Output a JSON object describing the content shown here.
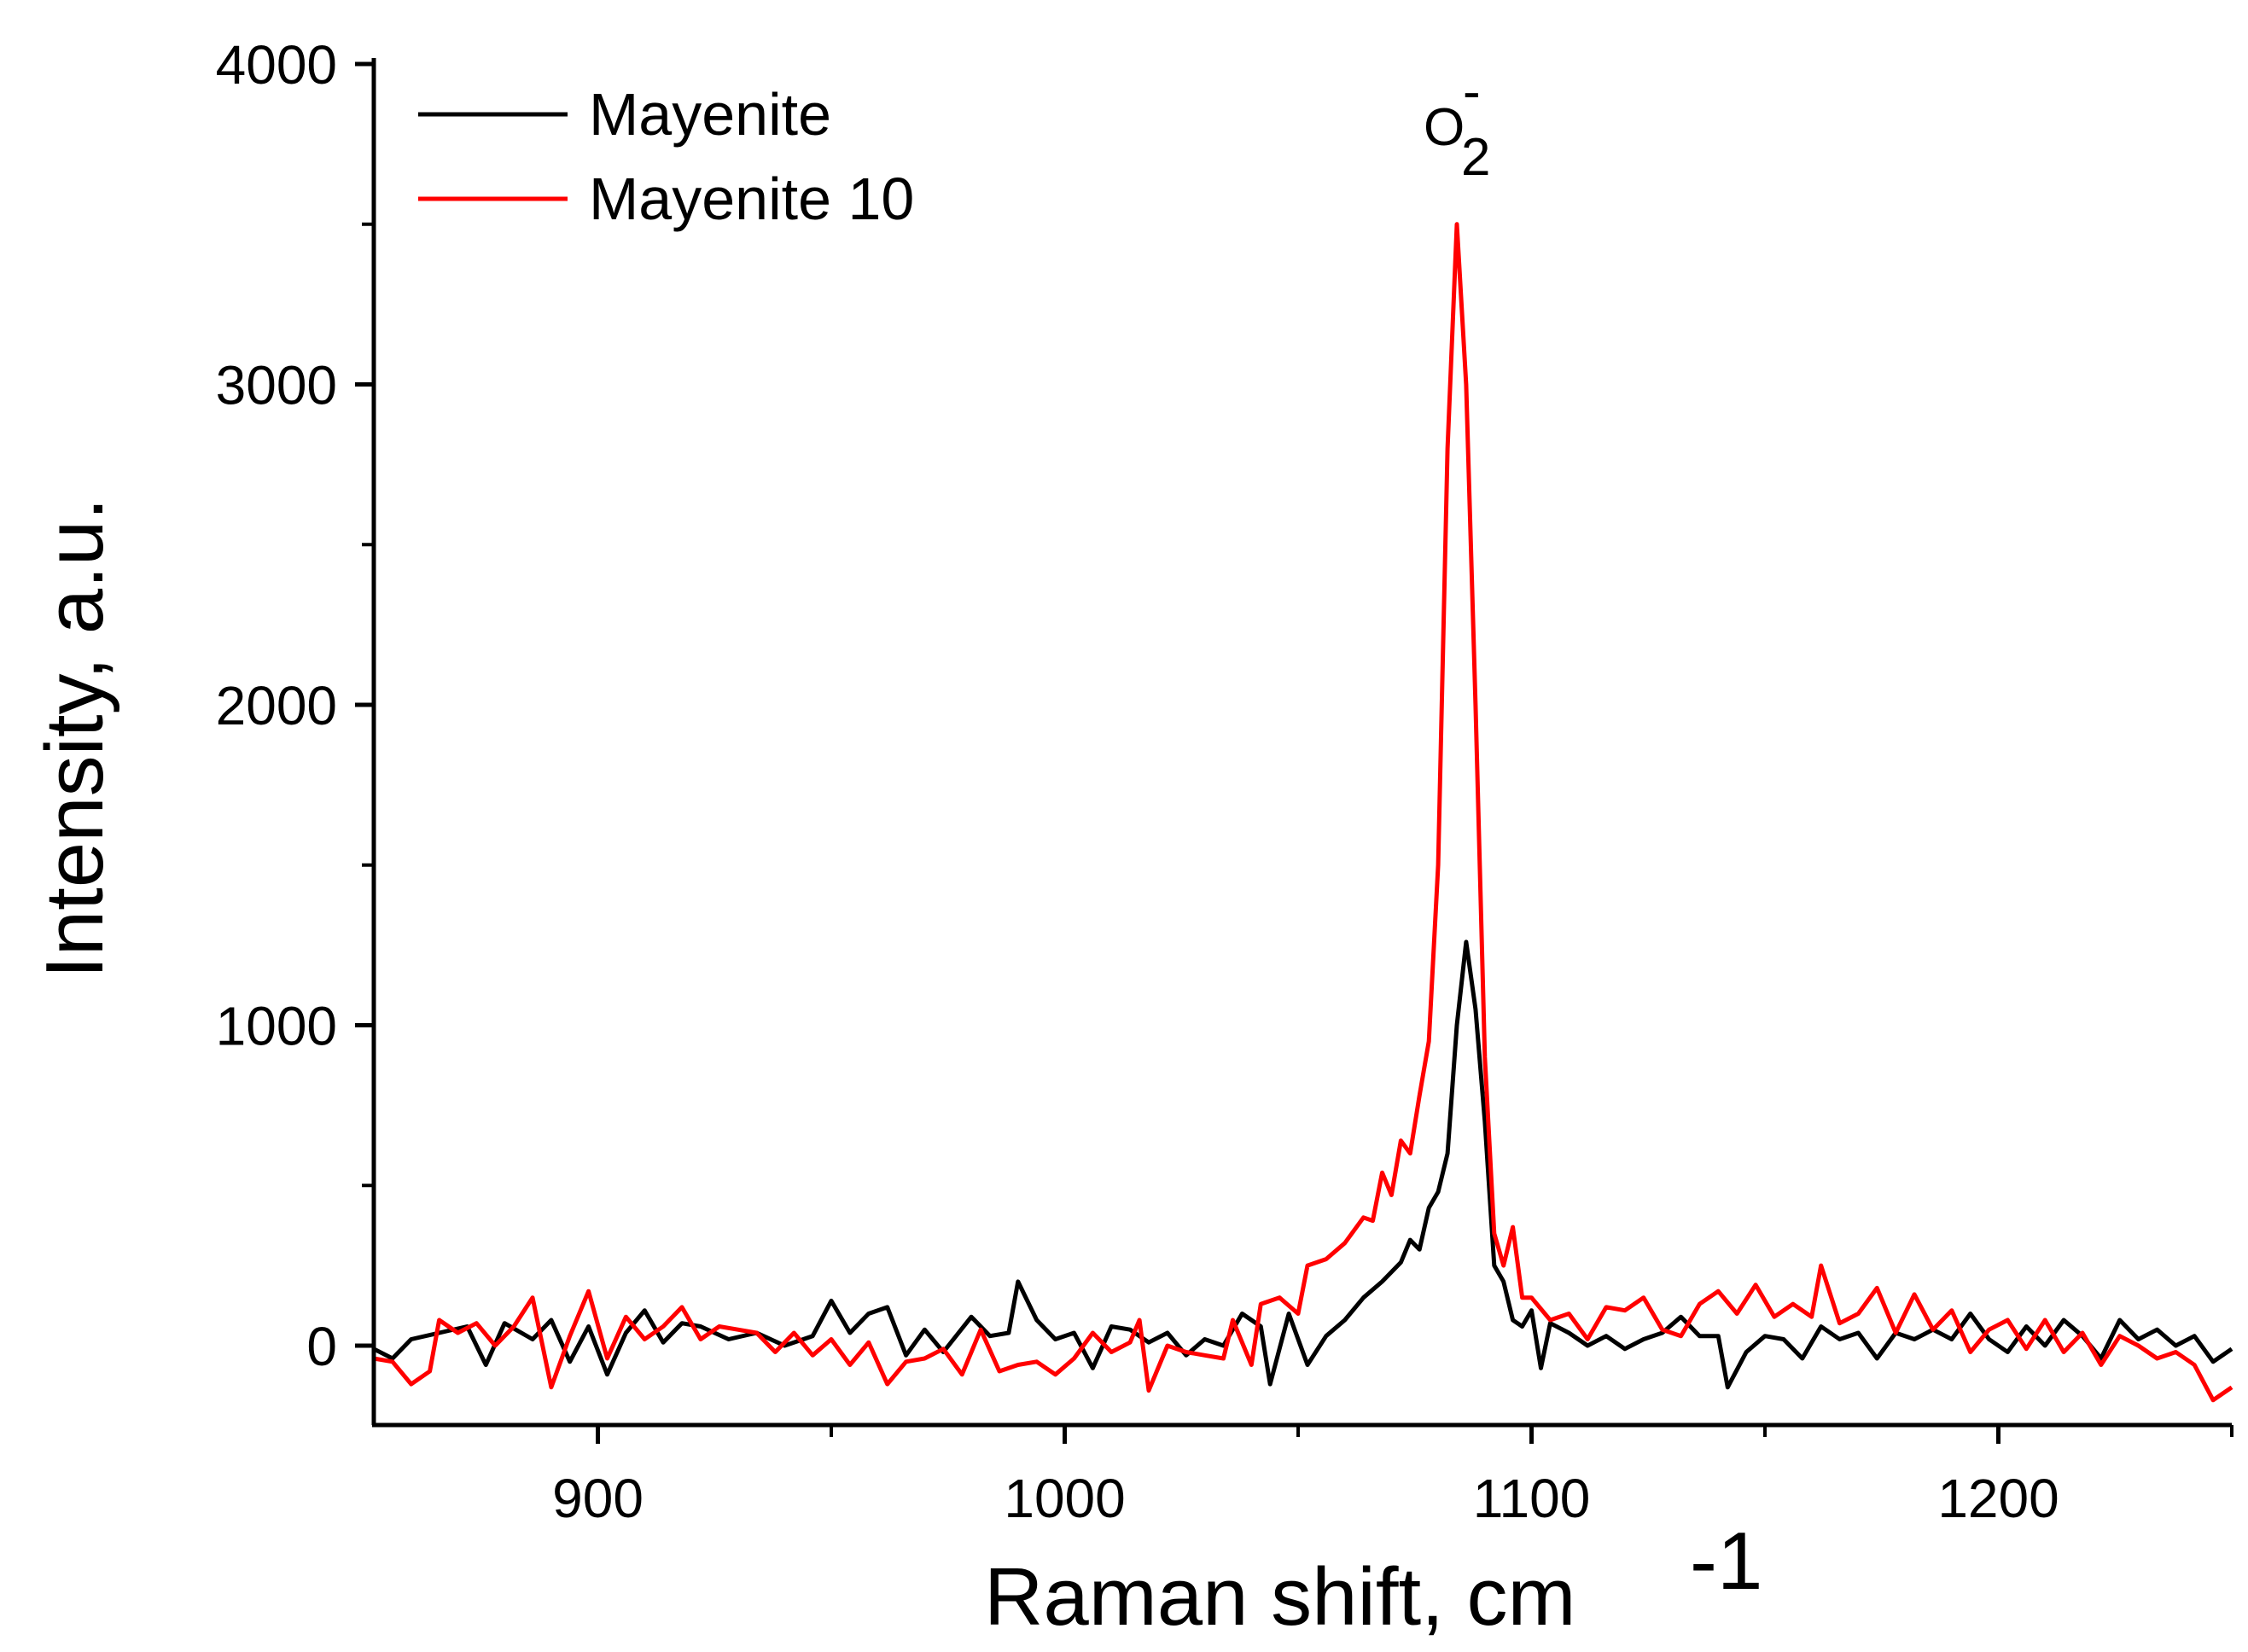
{
  "chart_data": {
    "type": "line",
    "title": "",
    "xlabel": "Raman shift, cm",
    "xlabel_superscript": "-1",
    "ylabel": "Intensity, a.u.",
    "xlim": [
      852,
      1250
    ],
    "ylim": [
      -250,
      4000
    ],
    "x_ticks": [
      900,
      1000,
      1100,
      1200
    ],
    "x_minor_ticks": [
      850,
      950,
      1050,
      1150,
      1250
    ],
    "y_ticks": [
      0,
      1000,
      2000,
      3000,
      4000
    ],
    "y_minor_ticks": [
      500,
      1500,
      2500,
      3500
    ],
    "annotation": {
      "text": "O",
      "superscript": "-",
      "subscript": "2",
      "x": 1085,
      "y": 3760
    },
    "legend": {
      "position": "top-left",
      "entries": [
        {
          "label": "Mayenite",
          "color": "#000000"
        },
        {
          "label": "Mayenite 10",
          "color": "#ff0000"
        }
      ]
    },
    "series": [
      {
        "name": "Mayenite",
        "color": "#000000",
        "points": [
          [
            852,
            -10
          ],
          [
            856,
            -40
          ],
          [
            860,
            20
          ],
          [
            866,
            40
          ],
          [
            872,
            60
          ],
          [
            876,
            -60
          ],
          [
            880,
            70
          ],
          [
            886,
            20
          ],
          [
            890,
            80
          ],
          [
            894,
            -50
          ],
          [
            898,
            60
          ],
          [
            902,
            -90
          ],
          [
            906,
            40
          ],
          [
            910,
            110
          ],
          [
            914,
            10
          ],
          [
            918,
            70
          ],
          [
            922,
            60
          ],
          [
            928,
            20
          ],
          [
            934,
            40
          ],
          [
            940,
            0
          ],
          [
            946,
            30
          ],
          [
            950,
            140
          ],
          [
            954,
            40
          ],
          [
            958,
            100
          ],
          [
            962,
            120
          ],
          [
            966,
            -30
          ],
          [
            970,
            50
          ],
          [
            974,
            -20
          ],
          [
            980,
            90
          ],
          [
            984,
            30
          ],
          [
            988,
            40
          ],
          [
            990,
            200
          ],
          [
            994,
            80
          ],
          [
            998,
            20
          ],
          [
            1002,
            40
          ],
          [
            1006,
            -70
          ],
          [
            1010,
            60
          ],
          [
            1014,
            50
          ],
          [
            1018,
            10
          ],
          [
            1022,
            40
          ],
          [
            1026,
            -30
          ],
          [
            1030,
            20
          ],
          [
            1034,
            0
          ],
          [
            1038,
            100
          ],
          [
            1042,
            60
          ],
          [
            1044,
            -120
          ],
          [
            1048,
            100
          ],
          [
            1052,
            -60
          ],
          [
            1056,
            30
          ],
          [
            1060,
            80
          ],
          [
            1064,
            150
          ],
          [
            1068,
            200
          ],
          [
            1072,
            260
          ],
          [
            1074,
            330
          ],
          [
            1076,
            300
          ],
          [
            1078,
            430
          ],
          [
            1080,
            480
          ],
          [
            1082,
            600
          ],
          [
            1084,
            1000
          ],
          [
            1086,
            1260
          ],
          [
            1088,
            1050
          ],
          [
            1090,
            700
          ],
          [
            1092,
            250
          ],
          [
            1094,
            200
          ],
          [
            1096,
            80
          ],
          [
            1098,
            60
          ],
          [
            1100,
            110
          ],
          [
            1102,
            -70
          ],
          [
            1104,
            70
          ],
          [
            1108,
            40
          ],
          [
            1112,
            0
          ],
          [
            1116,
            30
          ],
          [
            1120,
            -10
          ],
          [
            1124,
            20
          ],
          [
            1128,
            40
          ],
          [
            1132,
            90
          ],
          [
            1136,
            30
          ],
          [
            1140,
            30
          ],
          [
            1142,
            -130
          ],
          [
            1146,
            -20
          ],
          [
            1150,
            30
          ],
          [
            1154,
            20
          ],
          [
            1158,
            -40
          ],
          [
            1162,
            60
          ],
          [
            1166,
            20
          ],
          [
            1170,
            40
          ],
          [
            1174,
            -40
          ],
          [
            1178,
            40
          ],
          [
            1182,
            20
          ],
          [
            1186,
            50
          ],
          [
            1190,
            20
          ],
          [
            1194,
            100
          ],
          [
            1198,
            20
          ],
          [
            1202,
            -20
          ],
          [
            1206,
            60
          ],
          [
            1210,
            0
          ],
          [
            1214,
            80
          ],
          [
            1218,
            30
          ],
          [
            1222,
            -40
          ],
          [
            1226,
            80
          ],
          [
            1230,
            20
          ],
          [
            1234,
            50
          ],
          [
            1238,
            0
          ],
          [
            1242,
            30
          ],
          [
            1246,
            -50
          ],
          [
            1250,
            -10
          ]
        ]
      },
      {
        "name": "Mayenite 10",
        "color": "#ff0000",
        "points": [
          [
            852,
            -40
          ],
          [
            856,
            -50
          ],
          [
            860,
            -120
          ],
          [
            864,
            -80
          ],
          [
            866,
            80
          ],
          [
            870,
            40
          ],
          [
            874,
            70
          ],
          [
            878,
            0
          ],
          [
            882,
            60
          ],
          [
            886,
            150
          ],
          [
            890,
            -130
          ],
          [
            894,
            30
          ],
          [
            898,
            170
          ],
          [
            902,
            -40
          ],
          [
            906,
            90
          ],
          [
            910,
            20
          ],
          [
            914,
            60
          ],
          [
            918,
            120
          ],
          [
            922,
            20
          ],
          [
            926,
            60
          ],
          [
            930,
            50
          ],
          [
            934,
            40
          ],
          [
            938,
            -20
          ],
          [
            942,
            40
          ],
          [
            946,
            -30
          ],
          [
            950,
            20
          ],
          [
            954,
            -60
          ],
          [
            958,
            10
          ],
          [
            962,
            -120
          ],
          [
            966,
            -50
          ],
          [
            970,
            -40
          ],
          [
            974,
            -10
          ],
          [
            978,
            -90
          ],
          [
            982,
            50
          ],
          [
            986,
            -80
          ],
          [
            990,
            -60
          ],
          [
            994,
            -50
          ],
          [
            998,
            -90
          ],
          [
            1002,
            -40
          ],
          [
            1006,
            40
          ],
          [
            1010,
            -20
          ],
          [
            1014,
            10
          ],
          [
            1016,
            80
          ],
          [
            1018,
            -140
          ],
          [
            1022,
            0
          ],
          [
            1026,
            -20
          ],
          [
            1030,
            -30
          ],
          [
            1034,
            -40
          ],
          [
            1036,
            80
          ],
          [
            1040,
            -60
          ],
          [
            1042,
            130
          ],
          [
            1046,
            150
          ],
          [
            1050,
            100
          ],
          [
            1052,
            250
          ],
          [
            1056,
            270
          ],
          [
            1060,
            320
          ],
          [
            1064,
            400
          ],
          [
            1066,
            390
          ],
          [
            1068,
            540
          ],
          [
            1070,
            470
          ],
          [
            1072,
            640
          ],
          [
            1074,
            600
          ],
          [
            1076,
            780
          ],
          [
            1078,
            950
          ],
          [
            1080,
            1500
          ],
          [
            1082,
            2800
          ],
          [
            1084,
            3500
          ],
          [
            1086,
            3000
          ],
          [
            1088,
            2000
          ],
          [
            1090,
            900
          ],
          [
            1092,
            350
          ],
          [
            1094,
            250
          ],
          [
            1096,
            370
          ],
          [
            1098,
            150
          ],
          [
            1100,
            150
          ],
          [
            1104,
            80
          ],
          [
            1108,
            100
          ],
          [
            1112,
            20
          ],
          [
            1116,
            120
          ],
          [
            1120,
            110
          ],
          [
            1124,
            150
          ],
          [
            1128,
            50
          ],
          [
            1132,
            30
          ],
          [
            1136,
            130
          ],
          [
            1140,
            170
          ],
          [
            1144,
            100
          ],
          [
            1148,
            190
          ],
          [
            1152,
            90
          ],
          [
            1156,
            130
          ],
          [
            1160,
            90
          ],
          [
            1162,
            250
          ],
          [
            1166,
            70
          ],
          [
            1170,
            100
          ],
          [
            1174,
            180
          ],
          [
            1178,
            40
          ],
          [
            1182,
            160
          ],
          [
            1186,
            50
          ],
          [
            1190,
            110
          ],
          [
            1194,
            -20
          ],
          [
            1198,
            50
          ],
          [
            1202,
            80
          ],
          [
            1206,
            -10
          ],
          [
            1210,
            80
          ],
          [
            1214,
            -20
          ],
          [
            1218,
            40
          ],
          [
            1222,
            -60
          ],
          [
            1226,
            30
          ],
          [
            1230,
            0
          ],
          [
            1234,
            -40
          ],
          [
            1238,
            -20
          ],
          [
            1242,
            -60
          ],
          [
            1246,
            -170
          ],
          [
            1250,
            -130
          ]
        ]
      }
    ]
  }
}
